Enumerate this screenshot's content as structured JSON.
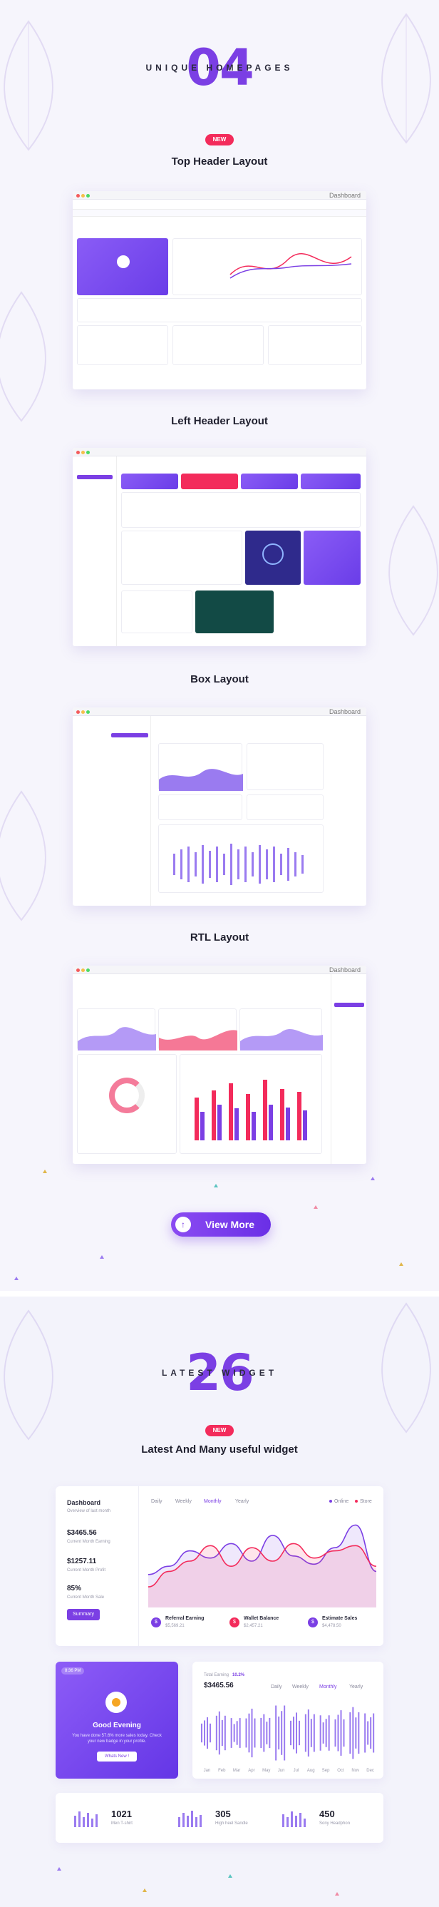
{
  "section_homepages": {
    "number": "04",
    "title": "UNIQUE HOMEPAGES",
    "badge": "NEW",
    "layouts": [
      {
        "title": "Top Header Layout",
        "window_label": "Dashboard"
      },
      {
        "title": "Left Header Layout",
        "window_label": ""
      },
      {
        "title": "Box Layout",
        "window_label": "Dashboard"
      },
      {
        "title": "RTL Layout",
        "window_label": "Dashboard"
      }
    ],
    "view_more": "View More"
  },
  "section_widgets": {
    "number": "26",
    "title": "LATEST WIDGET",
    "badge": "NEW",
    "subtitle": "Latest And Many useful widget",
    "dashboard_card": {
      "title": "Dashboard",
      "subtitle": "Overview of last month",
      "stats": [
        {
          "value": "$3465.56",
          "label": "Current Month Earning"
        },
        {
          "value": "$1257.11",
          "label": "Current Month Profit"
        },
        {
          "value": "85%",
          "label": "Current Month Sale"
        }
      ],
      "button": "Summary",
      "tabs": [
        "Daily",
        "Weekly",
        "Monthly",
        "Yearly"
      ],
      "active_tab": "Monthly",
      "legend": [
        {
          "name": "Online",
          "color": "#7b3fe4"
        },
        {
          "name": "Store",
          "color": "#f32b5b"
        }
      ],
      "footer": [
        {
          "title": "Referral Earning",
          "value": "$5,569.21",
          "color": "#7b3fe4",
          "icon": "$"
        },
        {
          "title": "Wallet Balance",
          "value": "$2,457.21",
          "color": "#f32b5b",
          "icon": "$"
        },
        {
          "title": "Estimate Sales",
          "value": "$4,478.50",
          "color": "#7b3fe4",
          "icon": "$"
        }
      ]
    },
    "greeting_card": {
      "time": "8:36 PM",
      "title": "Good Evening",
      "text": "You have done 57.6% more sales today. Check your new badge in your profile.",
      "button": "Whats New !"
    },
    "earning_card": {
      "label": "Total Earning",
      "change": "10.2%",
      "value": "$3465.56",
      "tabs": [
        "Daily",
        "Weekly",
        "Monthly",
        "Yearly"
      ],
      "active_tab": "Monthly",
      "months": [
        "Jan",
        "Feb",
        "Mar",
        "Apr",
        "May",
        "Jun",
        "Jul",
        "Aug",
        "Sep",
        "Oct",
        "Nov",
        "Dec"
      ]
    },
    "product_stats": [
      {
        "value": "1021",
        "label": "Men T-shirt"
      },
      {
        "value": "305",
        "label": "High heel Sandle"
      },
      {
        "value": "450",
        "label": "Sony Headphon"
      }
    ]
  },
  "colors": {
    "accent": "#7b3fe4",
    "pink": "#f32b5b",
    "badge": "#f32b5b"
  },
  "icons": [
    "leaf-icon",
    "arrow-up-icon",
    "sun-icon",
    "dollar-icon"
  ],
  "chart_data": [
    {
      "type": "area",
      "series": [
        {
          "name": "Online",
          "values": [
            32,
            40,
            55,
            48,
            62,
            45,
            70,
            50,
            42,
            58,
            80,
            35
          ]
        },
        {
          "name": "Store",
          "values": [
            20,
            35,
            45,
            60,
            40,
            58,
            45,
            62,
            48,
            55,
            60,
            40
          ]
        }
      ]
    },
    {
      "type": "bar",
      "categories": [
        "Jan",
        "Feb",
        "Mar",
        "Apr",
        "May",
        "Jun",
        "Jul",
        "Aug",
        "Sep",
        "Oct",
        "Nov",
        "Dec"
      ],
      "values": [
        40,
        55,
        38,
        62,
        48,
        70,
        52,
        60,
        45,
        58,
        66,
        50
      ]
    }
  ]
}
